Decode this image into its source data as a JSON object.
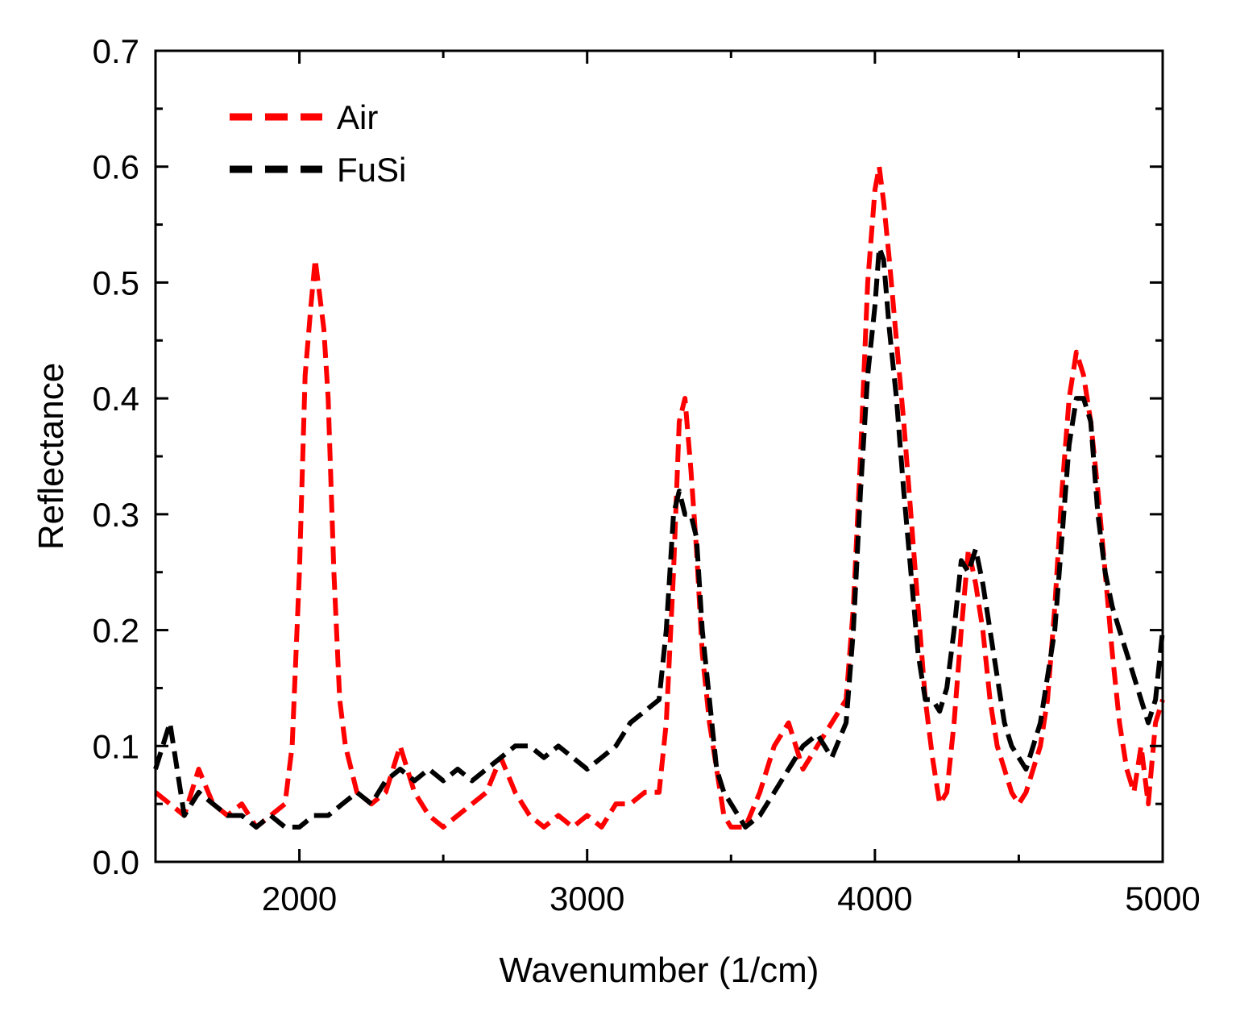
{
  "chart_data": {
    "type": "line",
    "title": "",
    "xlabel": "Wavenumber (1/cm)",
    "ylabel": "Reflectance",
    "xlim": [
      1500,
      5000
    ],
    "ylim": [
      0.0,
      0.7
    ],
    "x_ticks": [
      2000,
      3000,
      4000,
      5000
    ],
    "x_tick_labels": [
      "2000",
      "3000",
      "4000",
      "5000"
    ],
    "x_minor_step": 500,
    "y_ticks": [
      0.0,
      0.1,
      0.2,
      0.3,
      0.4,
      0.5,
      0.6,
      0.7
    ],
    "y_tick_labels": [
      "0.0",
      "0.1",
      "0.2",
      "0.3",
      "0.4",
      "0.5",
      "0.6",
      "0.7"
    ],
    "y_minor_step": 0.05,
    "grid": false,
    "legend_position": "top-left",
    "series": [
      {
        "name": "Air",
        "color": "#ff0000",
        "style": "dashed",
        "x": [
          1500,
          1550,
          1600,
          1650,
          1700,
          1750,
          1800,
          1850,
          1900,
          1950,
          1975,
          2000,
          2020,
          2040,
          2055,
          2070,
          2085,
          2100,
          2120,
          2140,
          2160,
          2180,
          2200,
          2250,
          2300,
          2350,
          2400,
          2450,
          2500,
          2550,
          2600,
          2650,
          2700,
          2750,
          2800,
          2850,
          2900,
          2950,
          3000,
          3050,
          3100,
          3150,
          3200,
          3250,
          3275,
          3300,
          3320,
          3340,
          3360,
          3380,
          3400,
          3425,
          3450,
          3475,
          3500,
          3550,
          3600,
          3650,
          3700,
          3750,
          3800,
          3850,
          3900,
          3925,
          3950,
          3975,
          4000,
          4015,
          4030,
          4050,
          4075,
          4100,
          4125,
          4150,
          4175,
          4200,
          4225,
          4250,
          4275,
          4300,
          4325,
          4350,
          4375,
          4400,
          4425,
          4450,
          4475,
          4500,
          4525,
          4550,
          4575,
          4600,
          4625,
          4650,
          4675,
          4700,
          4725,
          4750,
          4775,
          4800,
          4825,
          4850,
          4875,
          4900,
          4925,
          4950,
          4975,
          5000
        ],
        "y": [
          0.06,
          0.05,
          0.04,
          0.08,
          0.05,
          0.04,
          0.05,
          0.03,
          0.04,
          0.05,
          0.1,
          0.25,
          0.42,
          0.48,
          0.52,
          0.49,
          0.46,
          0.4,
          0.25,
          0.14,
          0.1,
          0.08,
          0.06,
          0.05,
          0.06,
          0.1,
          0.06,
          0.04,
          0.03,
          0.04,
          0.05,
          0.06,
          0.09,
          0.06,
          0.04,
          0.03,
          0.04,
          0.03,
          0.04,
          0.03,
          0.05,
          0.05,
          0.06,
          0.06,
          0.12,
          0.25,
          0.38,
          0.4,
          0.34,
          0.27,
          0.18,
          0.12,
          0.08,
          0.04,
          0.03,
          0.03,
          0.06,
          0.1,
          0.12,
          0.08,
          0.1,
          0.12,
          0.14,
          0.22,
          0.35,
          0.5,
          0.58,
          0.6,
          0.57,
          0.52,
          0.45,
          0.38,
          0.3,
          0.22,
          0.14,
          0.09,
          0.05,
          0.06,
          0.12,
          0.2,
          0.27,
          0.24,
          0.2,
          0.14,
          0.1,
          0.08,
          0.06,
          0.05,
          0.06,
          0.08,
          0.1,
          0.14,
          0.22,
          0.32,
          0.4,
          0.44,
          0.42,
          0.38,
          0.32,
          0.25,
          0.18,
          0.12,
          0.08,
          0.06,
          0.1,
          0.05,
          0.12,
          0.14
        ]
      },
      {
        "name": "FuSi",
        "color": "#000000",
        "style": "dashed",
        "x": [
          1500,
          1550,
          1600,
          1650,
          1700,
          1750,
          1800,
          1850,
          1900,
          1950,
          2000,
          2050,
          2100,
          2150,
          2200,
          2250,
          2300,
          2350,
          2400,
          2450,
          2500,
          2550,
          2600,
          2650,
          2700,
          2750,
          2800,
          2850,
          2900,
          2950,
          3000,
          3050,
          3100,
          3150,
          3200,
          3250,
          3275,
          3300,
          3320,
          3340,
          3360,
          3380,
          3400,
          3425,
          3450,
          3475,
          3500,
          3550,
          3600,
          3650,
          3700,
          3750,
          3800,
          3850,
          3900,
          3925,
          3950,
          3975,
          4000,
          4015,
          4030,
          4050,
          4075,
          4100,
          4125,
          4150,
          4175,
          4200,
          4225,
          4250,
          4275,
          4300,
          4325,
          4350,
          4375,
          4400,
          4425,
          4450,
          4475,
          4500,
          4525,
          4550,
          4575,
          4600,
          4625,
          4650,
          4675,
          4700,
          4725,
          4750,
          4775,
          4800,
          4825,
          4850,
          4875,
          4900,
          4925,
          4950,
          4975,
          5000
        ],
        "y": [
          0.08,
          0.12,
          0.04,
          0.06,
          0.05,
          0.04,
          0.04,
          0.03,
          0.04,
          0.03,
          0.03,
          0.04,
          0.04,
          0.05,
          0.06,
          0.05,
          0.07,
          0.08,
          0.07,
          0.08,
          0.07,
          0.08,
          0.07,
          0.08,
          0.09,
          0.1,
          0.1,
          0.09,
          0.1,
          0.09,
          0.08,
          0.09,
          0.1,
          0.12,
          0.13,
          0.14,
          0.2,
          0.3,
          0.32,
          0.3,
          0.3,
          0.28,
          0.2,
          0.14,
          0.08,
          0.06,
          0.05,
          0.03,
          0.04,
          0.06,
          0.08,
          0.1,
          0.11,
          0.09,
          0.12,
          0.2,
          0.32,
          0.42,
          0.48,
          0.53,
          0.52,
          0.46,
          0.4,
          0.32,
          0.25,
          0.18,
          0.14,
          0.14,
          0.13,
          0.15,
          0.2,
          0.26,
          0.25,
          0.27,
          0.24,
          0.2,
          0.16,
          0.12,
          0.1,
          0.09,
          0.08,
          0.1,
          0.12,
          0.16,
          0.2,
          0.28,
          0.36,
          0.4,
          0.4,
          0.38,
          0.3,
          0.25,
          0.22,
          0.2,
          0.18,
          0.16,
          0.14,
          0.12,
          0.14,
          0.2
        ]
      }
    ]
  }
}
